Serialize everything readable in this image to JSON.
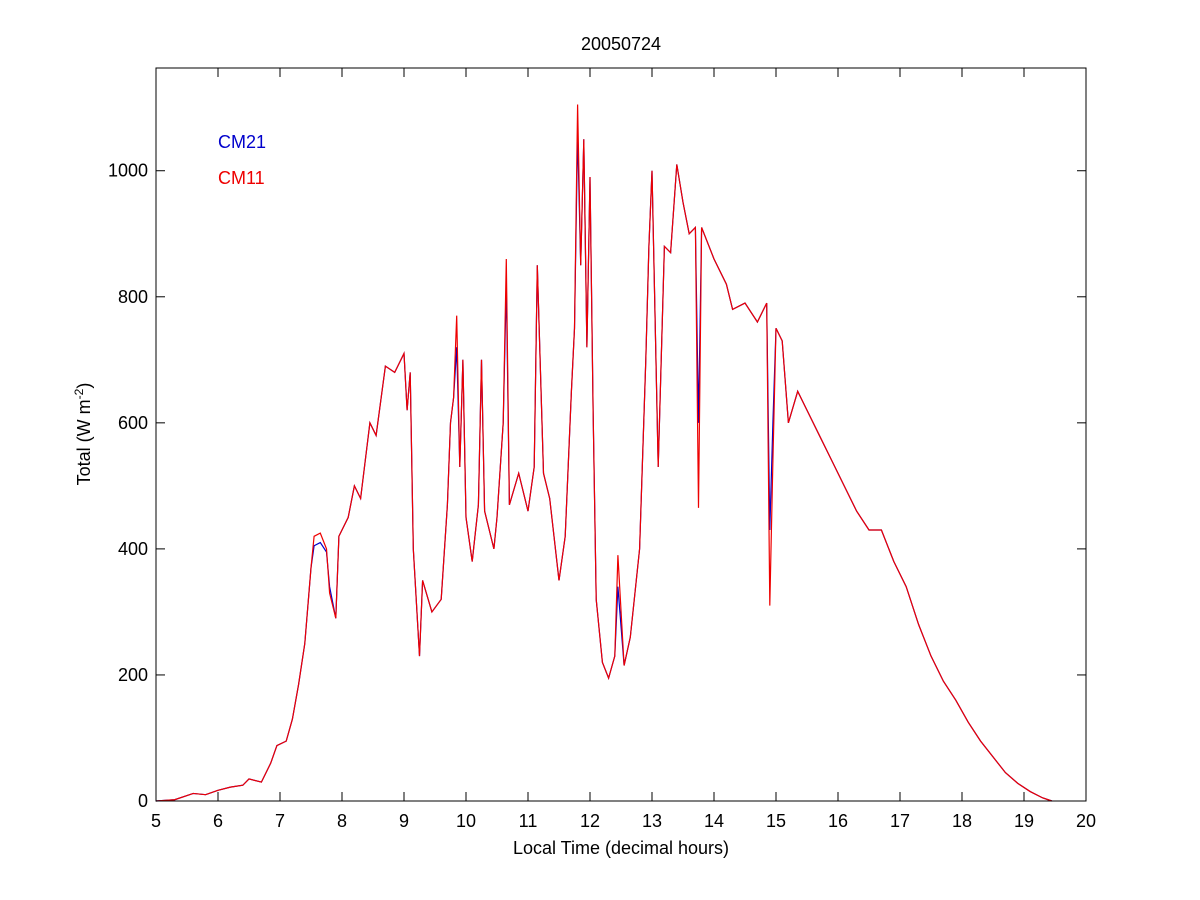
{
  "chart_data": {
    "type": "line",
    "title": "20050724",
    "x_label": "Local Time (decimal hours)",
    "y_label": [
      "Total (W m",
      "-2",
      ")"
    ],
    "xlim": [
      5,
      20
    ],
    "xticks": [
      5,
      6,
      7,
      8,
      9,
      10,
      11,
      12,
      13,
      14,
      15,
      16,
      17,
      18,
      19,
      20
    ],
    "ylim": [
      0,
      1163
    ],
    "yticks": [
      0,
      200,
      400,
      600,
      800,
      1000
    ],
    "legend": "upper left",
    "x": [
      5,
      5.3,
      5.6,
      5.8,
      6,
      6.2,
      6.4,
      6.5,
      6.7,
      6.85,
      6.95,
      7.1,
      7.2,
      7.3,
      7.4,
      7.5,
      7.55,
      7.65,
      7.75,
      7.8,
      7.9,
      7.95,
      8.1,
      8.2,
      8.3,
      8.45,
      8.55,
      8.7,
      8.85,
      9,
      9.05,
      9.1,
      9.15,
      9.25,
      9.3,
      9.45,
      9.6,
      9.7,
      9.75,
      9.8,
      9.85,
      9.9,
      9.95,
      10,
      10.1,
      10.2,
      10.25,
      10.3,
      10.45,
      10.5,
      10.6,
      10.65,
      10.7,
      10.85,
      11,
      11.1,
      11.15,
      11.25,
      11.35,
      11.5,
      11.6,
      11.7,
      11.75,
      11.8,
      11.85,
      11.9,
      11.95,
      12,
      12.05,
      12.1,
      12.2,
      12.3,
      12.4,
      12.45,
      12.55,
      12.65,
      12.8,
      12.9,
      12.95,
      13,
      13.1,
      13.2,
      13.3,
      13.4,
      13.5,
      13.6,
      13.7,
      13.75,
      13.8,
      14,
      14.2,
      14.3,
      14.5,
      14.7,
      14.85,
      14.9,
      14.95,
      15,
      15.1,
      15.2,
      15.35,
      15.5,
      15.7,
      15.9,
      16.1,
      16.3,
      16.5,
      16.7,
      16.9,
      17.1,
      17.3,
      17.5,
      17.7,
      17.9,
      18.1,
      18.3,
      18.5,
      18.7,
      18.9,
      19.1,
      19.3,
      19.45
    ],
    "series": [
      {
        "name": "CM21",
        "color": "#0000cc",
        "values": [
          0,
          2,
          12,
          10,
          17,
          22,
          25,
          35,
          30,
          60,
          88,
          95,
          130,
          185,
          250,
          370,
          405,
          410,
          395,
          340,
          290,
          420,
          450,
          500,
          480,
          600,
          580,
          690,
          680,
          710,
          620,
          680,
          400,
          230,
          350,
          300,
          320,
          470,
          600,
          640,
          720,
          530,
          700,
          450,
          380,
          470,
          700,
          460,
          400,
          450,
          600,
          820,
          470,
          520,
          460,
          530,
          850,
          520,
          480,
          350,
          420,
          650,
          750,
          1060,
          850,
          1050,
          720,
          990,
          620,
          320,
          220,
          195,
          230,
          340,
          215,
          260,
          400,
          700,
          880,
          1000,
          530,
          880,
          870,
          1010,
          950,
          900,
          910,
          600,
          910,
          860,
          820,
          780,
          790,
          760,
          790,
          430,
          600,
          750,
          730,
          600,
          650,
          620,
          580,
          540,
          500,
          460,
          430,
          430,
          380,
          340,
          280,
          230,
          190,
          160,
          125,
          95,
          70,
          45,
          28,
          15,
          5,
          0
        ]
      },
      {
        "name": "CM11",
        "color": "#ee0000",
        "values": [
          0,
          2,
          12,
          10,
          17,
          22,
          25,
          35,
          30,
          60,
          88,
          95,
          130,
          185,
          250,
          370,
          420,
          425,
          400,
          330,
          290,
          420,
          450,
          500,
          480,
          600,
          580,
          690,
          680,
          710,
          620,
          680,
          400,
          230,
          350,
          300,
          320,
          470,
          600,
          640,
          770,
          530,
          700,
          450,
          380,
          470,
          700,
          460,
          400,
          450,
          600,
          860,
          470,
          520,
          460,
          530,
          850,
          520,
          480,
          350,
          420,
          650,
          750,
          1105,
          850,
          1050,
          720,
          990,
          620,
          320,
          220,
          195,
          230,
          390,
          215,
          260,
          400,
          700,
          880,
          1000,
          530,
          880,
          870,
          1010,
          950,
          900,
          910,
          465,
          910,
          860,
          820,
          780,
          790,
          760,
          790,
          310,
          540,
          750,
          730,
          600,
          650,
          620,
          580,
          540,
          500,
          460,
          430,
          430,
          380,
          340,
          280,
          230,
          190,
          160,
          125,
          95,
          70,
          45,
          28,
          15,
          5,
          0
        ]
      }
    ]
  }
}
